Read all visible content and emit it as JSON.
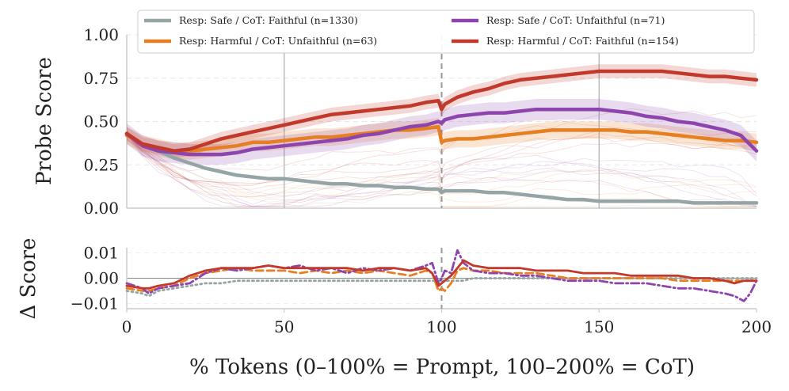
{
  "chart_data": [
    {
      "type": "line",
      "panel": "top",
      "ylabel": "Probe Score",
      "xlim": [
        0,
        200
      ],
      "ylim": [
        0,
        1
      ],
      "yticks": [
        "0.00",
        "0.25",
        "0.50",
        "0.75",
        "1.00"
      ],
      "vlines": [
        50,
        100,
        150
      ],
      "boundary": 100,
      "legend_position": "top",
      "x": [
        0,
        5,
        10,
        15,
        20,
        25,
        30,
        35,
        40,
        45,
        50,
        55,
        60,
        65,
        70,
        75,
        80,
        85,
        90,
        95,
        99,
        100,
        101,
        105,
        110,
        115,
        120,
        125,
        130,
        135,
        140,
        145,
        150,
        155,
        160,
        165,
        170,
        175,
        180,
        185,
        190,
        195,
        200
      ],
      "series": [
        {
          "name": "Resp: Safe / CoT: Faithful (n=1330)",
          "color": "#95a5a6",
          "values": [
            0.43,
            0.37,
            0.33,
            0.29,
            0.26,
            0.23,
            0.21,
            0.19,
            0.18,
            0.17,
            0.17,
            0.16,
            0.15,
            0.14,
            0.14,
            0.13,
            0.13,
            0.12,
            0.12,
            0.11,
            0.11,
            0.09,
            0.1,
            0.1,
            0.1,
            0.09,
            0.09,
            0.08,
            0.07,
            0.06,
            0.05,
            0.05,
            0.04,
            0.04,
            0.04,
            0.04,
            0.04,
            0.04,
            0.03,
            0.03,
            0.03,
            0.03,
            0.03
          ]
        },
        {
          "name": "Resp: Harmful / CoT: Unfaithful (n=63)",
          "color": "#e67e22",
          "band": 0.05,
          "values": [
            0.42,
            0.37,
            0.35,
            0.33,
            0.33,
            0.34,
            0.35,
            0.36,
            0.38,
            0.38,
            0.39,
            0.4,
            0.41,
            0.41,
            0.42,
            0.43,
            0.44,
            0.45,
            0.45,
            0.46,
            0.47,
            0.38,
            0.39,
            0.4,
            0.4,
            0.41,
            0.42,
            0.43,
            0.44,
            0.45,
            0.45,
            0.45,
            0.45,
            0.45,
            0.44,
            0.44,
            0.43,
            0.42,
            0.41,
            0.4,
            0.39,
            0.39,
            0.38
          ]
        },
        {
          "name": "Resp: Safe / CoT: Unfaithful (n=71)",
          "color": "#8e44ad",
          "band": 0.06,
          "values": [
            0.43,
            0.36,
            0.33,
            0.32,
            0.31,
            0.31,
            0.31,
            0.32,
            0.34,
            0.35,
            0.36,
            0.37,
            0.38,
            0.39,
            0.4,
            0.42,
            0.43,
            0.45,
            0.47,
            0.48,
            0.5,
            0.49,
            0.51,
            0.53,
            0.54,
            0.55,
            0.55,
            0.56,
            0.57,
            0.57,
            0.57,
            0.57,
            0.57,
            0.56,
            0.55,
            0.53,
            0.52,
            0.5,
            0.49,
            0.47,
            0.45,
            0.42,
            0.33
          ]
        },
        {
          "name": "Resp: Harmful / CoT: Faithful (n=154)",
          "color": "#c0392b",
          "band": 0.04,
          "values": [
            0.43,
            0.37,
            0.35,
            0.33,
            0.34,
            0.37,
            0.4,
            0.42,
            0.44,
            0.46,
            0.48,
            0.5,
            0.52,
            0.54,
            0.55,
            0.56,
            0.57,
            0.58,
            0.59,
            0.61,
            0.62,
            0.57,
            0.6,
            0.64,
            0.67,
            0.69,
            0.72,
            0.74,
            0.75,
            0.76,
            0.77,
            0.78,
            0.79,
            0.79,
            0.79,
            0.79,
            0.79,
            0.78,
            0.77,
            0.76,
            0.76,
            0.75,
            0.74
          ]
        }
      ]
    },
    {
      "type": "line",
      "panel": "bottom",
      "xlabel": "% Tokens (0–100% = Prompt, 100–200% = CoT)",
      "ylabel": "Δ Score",
      "xlim": [
        0,
        200
      ],
      "ylim": [
        -0.012,
        0.012
      ],
      "xticks": [
        "0",
        "50",
        "100",
        "150",
        "200"
      ],
      "yticks": [
        "−0.01",
        "0.00",
        "0.01"
      ],
      "boundary": 100,
      "x": [
        0,
        5,
        7,
        10,
        15,
        20,
        25,
        30,
        35,
        40,
        45,
        50,
        55,
        60,
        65,
        70,
        75,
        80,
        85,
        90,
        95,
        97,
        99,
        100,
        101,
        103,
        105,
        107,
        110,
        115,
        120,
        125,
        130,
        135,
        140,
        145,
        150,
        155,
        160,
        165,
        170,
        175,
        180,
        185,
        190,
        193,
        196,
        198,
        200
      ],
      "series": [
        {
          "name": "Resp: Safe / CoT: Faithful (n=1330)",
          "color": "#95a5a6",
          "dash": "dotted",
          "values": [
            -0.005,
            -0.006,
            -0.007,
            -0.005,
            -0.004,
            -0.003,
            -0.002,
            -0.002,
            -0.001,
            -0.001,
            -0.001,
            -0.001,
            -0.001,
            -0.001,
            -0.001,
            -0.001,
            -0.001,
            -0.001,
            -0.001,
            -0.001,
            -0.001,
            -0.001,
            -0.001,
            -0.001,
            -0.001,
            -0.001,
            -0.001,
            -0.001,
            0.0,
            0.0,
            0.0,
            0.0,
            0.0,
            0.0,
            0.0,
            0.0,
            0.0,
            0.0,
            0.0,
            0.0,
            0.0,
            0.0,
            0.0,
            0.0,
            0.0,
            0.0,
            0.0,
            0.0,
            0.0
          ]
        },
        {
          "name": "Resp: Harmful / CoT: Unfaithful (n=63)",
          "color": "#e67e22",
          "dash": "dashed",
          "values": [
            -0.004,
            -0.005,
            -0.005,
            -0.004,
            -0.003,
            0.0,
            0.002,
            0.003,
            0.004,
            0.003,
            0.003,
            0.003,
            0.002,
            0.003,
            0.002,
            0.003,
            0.002,
            0.003,
            0.002,
            0.001,
            0.003,
            0.002,
            -0.005,
            -0.004,
            -0.005,
            -0.002,
            0.003,
            0.004,
            0.003,
            0.003,
            0.002,
            0.002,
            0.002,
            0.001,
            0.0,
            0.0,
            0.0,
            0.0,
            0.0,
            0.0,
            0.0,
            -0.001,
            -0.001,
            -0.001,
            -0.001,
            -0.001,
            -0.001,
            -0.001,
            -0.001
          ]
        },
        {
          "name": "Resp: Safe / CoT: Unfaithful (n=71)",
          "color": "#8e44ad",
          "dash": "dashdot",
          "values": [
            -0.002,
            -0.004,
            -0.006,
            -0.004,
            -0.003,
            -0.002,
            0.002,
            0.004,
            0.003,
            0.004,
            0.005,
            0.004,
            0.005,
            0.003,
            0.004,
            0.002,
            0.004,
            0.003,
            0.004,
            0.003,
            0.005,
            0.006,
            -0.002,
            0.0,
            0.003,
            0.002,
            0.011,
            0.006,
            0.003,
            0.002,
            0.002,
            0.001,
            0.001,
            0.0,
            -0.001,
            -0.001,
            -0.001,
            -0.002,
            -0.002,
            -0.002,
            -0.003,
            -0.004,
            -0.004,
            -0.005,
            -0.006,
            -0.007,
            -0.009,
            -0.006,
            -0.001
          ]
        },
        {
          "name": "Resp: Harmful / CoT: Faithful (n=154)",
          "color": "#c0392b",
          "dash": "solid",
          "values": [
            -0.003,
            -0.004,
            -0.004,
            -0.003,
            -0.002,
            0.001,
            0.003,
            0.004,
            0.004,
            0.004,
            0.005,
            0.004,
            0.004,
            0.004,
            0.004,
            0.004,
            0.003,
            0.004,
            0.004,
            0.003,
            0.004,
            0.002,
            -0.003,
            -0.002,
            -0.001,
            0.001,
            0.004,
            0.007,
            0.005,
            0.004,
            0.004,
            0.004,
            0.003,
            0.003,
            0.003,
            0.002,
            0.002,
            0.002,
            0.001,
            0.001,
            0.001,
            0.001,
            0.0,
            0.0,
            -0.001,
            -0.002,
            -0.001,
            -0.001,
            -0.001
          ]
        }
      ]
    }
  ]
}
